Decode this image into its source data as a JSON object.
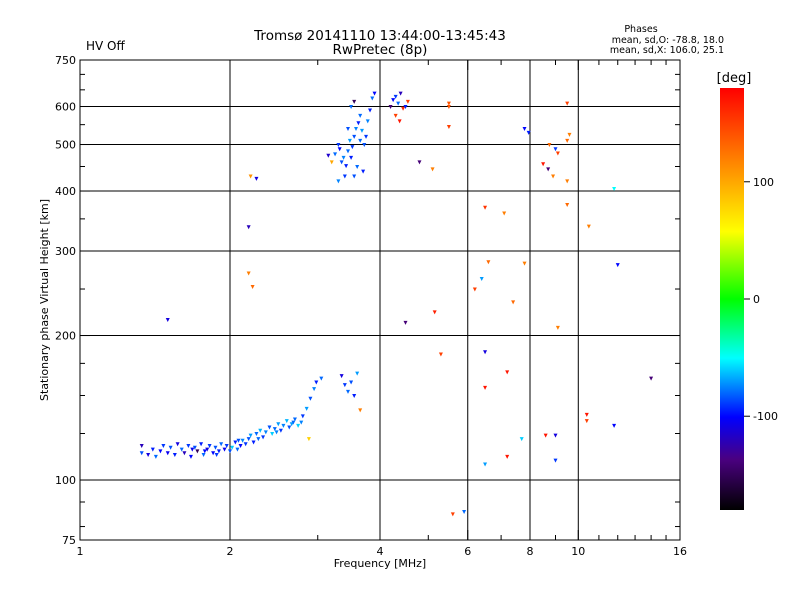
{
  "chart_data": {
    "type": "scatter",
    "title": "Tromsø 20141110 13:44:00-13:45:43",
    "subtitle": "RwPretec (8p)",
    "status_text": "HV Off",
    "status_color": "#dd0000",
    "stats_title": "Phases",
    "stats_line1": "mean, sd,O: -78.8, 18.0",
    "stats_line2": "mean, sd,X: 106.0, 25.1",
    "xlabel": "Frequency [MHz]",
    "ylabel": "Stationary phase Virtual Height [km]",
    "x_scale": "log",
    "y_scale": "log",
    "xlim": [
      1,
      16
    ],
    "ylim": [
      75,
      750
    ],
    "x_ticks": [
      {
        "v": 1,
        "label": "1"
      },
      {
        "v": 2,
        "label": "2"
      },
      {
        "v": 4,
        "label": "4"
      },
      {
        "v": 6,
        "label": "6"
      },
      {
        "v": 8,
        "label": "8"
      },
      {
        "v": 10,
        "label": "10"
      },
      {
        "v": 16,
        "label": "16"
      }
    ],
    "x_grid": [
      2,
      4,
      6,
      8,
      10
    ],
    "y_ticks": [
      {
        "v": 75,
        "label": "75"
      },
      {
        "v": 100,
        "label": "100"
      },
      {
        "v": 200,
        "label": "200"
      },
      {
        "v": 300,
        "label": "300"
      },
      {
        "v": 400,
        "label": "400"
      },
      {
        "v": 500,
        "label": "500"
      },
      {
        "v": 600,
        "label": "600"
      },
      {
        "v": 750,
        "label": "750"
      }
    ],
    "y_grid": [
      100,
      200,
      300,
      400,
      500,
      600
    ],
    "colorbar": {
      "label": "[deg]",
      "range": [
        -180,
        180
      ],
      "ticks": [
        {
          "v": 100,
          "label": "100"
        },
        {
          "v": 0,
          "label": "0"
        },
        {
          "v": -100,
          "label": "-100"
        }
      ]
    },
    "points": [
      [
        1.33,
        114,
        -85
      ],
      [
        1.33,
        118,
        -120
      ],
      [
        1.37,
        113,
        -110
      ],
      [
        1.4,
        116,
        -95
      ],
      [
        1.42,
        112,
        -80
      ],
      [
        1.45,
        115,
        -100
      ],
      [
        1.47,
        118,
        -90
      ],
      [
        1.5,
        114,
        -105
      ],
      [
        1.52,
        117,
        -85
      ],
      [
        1.55,
        113,
        -95
      ],
      [
        1.57,
        119,
        -110
      ],
      [
        1.6,
        116,
        -80
      ],
      [
        1.62,
        114,
        -120
      ],
      [
        1.65,
        118,
        -90
      ],
      [
        1.67,
        112,
        -100
      ],
      [
        1.7,
        117,
        -85
      ],
      [
        1.72,
        115,
        -150
      ],
      [
        1.75,
        119,
        -95
      ],
      [
        1.77,
        113,
        -80
      ],
      [
        1.8,
        116,
        -110
      ],
      [
        1.82,
        118,
        -90
      ],
      [
        1.85,
        114,
        -100
      ],
      [
        1.87,
        117,
        -85
      ],
      [
        1.9,
        115,
        -95
      ],
      [
        1.92,
        119,
        -80
      ],
      [
        1.95,
        116,
        -105
      ],
      [
        1.97,
        118,
        -90
      ],
      [
        2.0,
        115,
        -85
      ],
      [
        2.02,
        117,
        -60
      ],
      [
        2.05,
        120,
        -95
      ],
      [
        2.07,
        116,
        -80
      ],
      [
        2.1,
        118,
        -100
      ],
      [
        2.12,
        121,
        -75
      ],
      [
        2.15,
        119,
        -90
      ],
      [
        2.18,
        122,
        -85
      ],
      [
        2.2,
        124,
        -70
      ],
      [
        2.23,
        120,
        -95
      ],
      [
        2.26,
        125,
        -80
      ],
      [
        2.3,
        127,
        -65
      ],
      [
        2.33,
        123,
        -90
      ],
      [
        2.36,
        126,
        -75
      ],
      [
        2.4,
        129,
        -85
      ],
      [
        2.43,
        125,
        -60
      ],
      [
        2.46,
        128,
        -80
      ],
      [
        2.5,
        131,
        -70
      ],
      [
        2.53,
        127,
        -90
      ],
      [
        2.56,
        130,
        -75
      ],
      [
        2.6,
        133,
        -65
      ],
      [
        2.63,
        129,
        -85
      ],
      [
        2.66,
        131,
        -70
      ],
      [
        2.7,
        134,
        -80
      ],
      [
        2.74,
        130,
        -60
      ],
      [
        2.78,
        132,
        -75
      ],
      [
        2.8,
        136,
        -90
      ],
      [
        2.85,
        141,
        -70
      ],
      [
        2.9,
        148,
        -85
      ],
      [
        2.95,
        155,
        -75
      ],
      [
        2.98,
        160,
        -95
      ],
      [
        3.05,
        163,
        -80
      ],
      [
        1.68,
        116,
        -105
      ],
      [
        1.78,
        115,
        -100
      ],
      [
        1.88,
        113,
        -90
      ],
      [
        2.08,
        121,
        -85
      ],
      [
        2.28,
        122,
        -80
      ],
      [
        2.48,
        126,
        -75
      ],
      [
        2.68,
        132,
        -80
      ],
      [
        2.18,
        270,
        120
      ],
      [
        2.22,
        253,
        130
      ],
      [
        2.2,
        430,
        110
      ],
      [
        2.26,
        425,
        -110
      ],
      [
        2.18,
        337,
        -120
      ],
      [
        1.5,
        216,
        -110
      ],
      [
        2.88,
        122,
        80
      ],
      [
        3.15,
        475,
        -115
      ],
      [
        3.2,
        460,
        100
      ],
      [
        3.25,
        478,
        -80
      ],
      [
        3.3,
        500,
        -90
      ],
      [
        3.32,
        490,
        -100
      ],
      [
        3.35,
        460,
        -85
      ],
      [
        3.38,
        470,
        -75
      ],
      [
        3.42,
        452,
        -95
      ],
      [
        3.45,
        485,
        -80
      ],
      [
        3.48,
        510,
        -70
      ],
      [
        3.52,
        495,
        -90
      ],
      [
        3.55,
        520,
        -85
      ],
      [
        3.58,
        540,
        -75
      ],
      [
        3.62,
        555,
        -95
      ],
      [
        3.65,
        575,
        -80
      ],
      [
        3.68,
        535,
        -70
      ],
      [
        3.72,
        500,
        -85
      ],
      [
        3.75,
        520,
        -90
      ],
      [
        3.78,
        560,
        -75
      ],
      [
        3.82,
        590,
        -95
      ],
      [
        3.86,
        625,
        -80
      ],
      [
        3.9,
        640,
        -100
      ],
      [
        3.5,
        600,
        -80
      ],
      [
        3.55,
        615,
        -150
      ],
      [
        3.45,
        540,
        -85
      ],
      [
        3.5,
        470,
        -95
      ],
      [
        3.6,
        450,
        -80
      ],
      [
        3.4,
        430,
        -90
      ],
      [
        3.3,
        420,
        -75
      ],
      [
        3.55,
        430,
        -85
      ],
      [
        3.7,
        440,
        -95
      ],
      [
        3.65,
        510,
        -80
      ],
      [
        3.35,
        165,
        -110
      ],
      [
        3.4,
        158,
        -90
      ],
      [
        3.45,
        153,
        -80
      ],
      [
        3.5,
        160,
        -85
      ],
      [
        3.55,
        150,
        -95
      ],
      [
        3.6,
        167,
        -70
      ],
      [
        3.65,
        140,
        120
      ],
      [
        4.2,
        600,
        -140
      ],
      [
        4.25,
        620,
        -100
      ],
      [
        4.3,
        630,
        -90
      ],
      [
        4.35,
        610,
        -80
      ],
      [
        4.4,
        640,
        -120
      ],
      [
        4.45,
        595,
        160
      ],
      [
        4.3,
        575,
        150
      ],
      [
        4.38,
        560,
        170
      ],
      [
        4.5,
        600,
        -95
      ],
      [
        4.55,
        615,
        150
      ],
      [
        4.8,
        460,
        -140
      ],
      [
        5.1,
        445,
        120
      ],
      [
        5.5,
        610,
        140
      ],
      [
        5.5,
        545,
        150
      ],
      [
        5.5,
        600,
        140
      ],
      [
        4.5,
        213,
        -140
      ],
      [
        5.15,
        224,
        165
      ],
      [
        5.3,
        183,
        150
      ],
      [
        5.6,
        85,
        150
      ],
      [
        5.9,
        86,
        -80
      ],
      [
        6.5,
        370,
        155
      ],
      [
        6.6,
        285,
        130
      ],
      [
        6.4,
        263,
        -70
      ],
      [
        6.2,
        250,
        150
      ],
      [
        6.5,
        185,
        -110
      ],
      [
        6.5,
        156,
        170
      ],
      [
        6.5,
        108,
        -70
      ],
      [
        7.1,
        360,
        120
      ],
      [
        7.4,
        235,
        130
      ],
      [
        7.8,
        283,
        120
      ],
      [
        7.2,
        168,
        170
      ],
      [
        7.7,
        122,
        -60
      ],
      [
        7.2,
        112,
        170
      ],
      [
        7.8,
        540,
        -100
      ],
      [
        7.95,
        530,
        -95
      ],
      [
        8.5,
        456,
        170
      ],
      [
        8.7,
        445,
        -140
      ],
      [
        8.9,
        430,
        120
      ],
      [
        8.75,
        500,
        130
      ],
      [
        9.0,
        490,
        -90
      ],
      [
        9.1,
        480,
        150
      ],
      [
        9.1,
        208,
        120
      ],
      [
        8.6,
        124,
        170
      ],
      [
        9.0,
        124,
        -110
      ],
      [
        9.0,
        110,
        -90
      ],
      [
        9.5,
        610,
        150
      ],
      [
        9.6,
        525,
        120
      ],
      [
        9.5,
        510,
        130
      ],
      [
        9.5,
        420,
        120
      ],
      [
        9.5,
        375,
        130
      ],
      [
        10.5,
        338,
        120
      ],
      [
        10.4,
        137,
        170
      ],
      [
        10.4,
        133,
        150
      ],
      [
        11.8,
        405,
        -50
      ],
      [
        12.0,
        281,
        -100
      ],
      [
        11.8,
        130,
        -100
      ],
      [
        14.0,
        163,
        -140
      ]
    ]
  }
}
